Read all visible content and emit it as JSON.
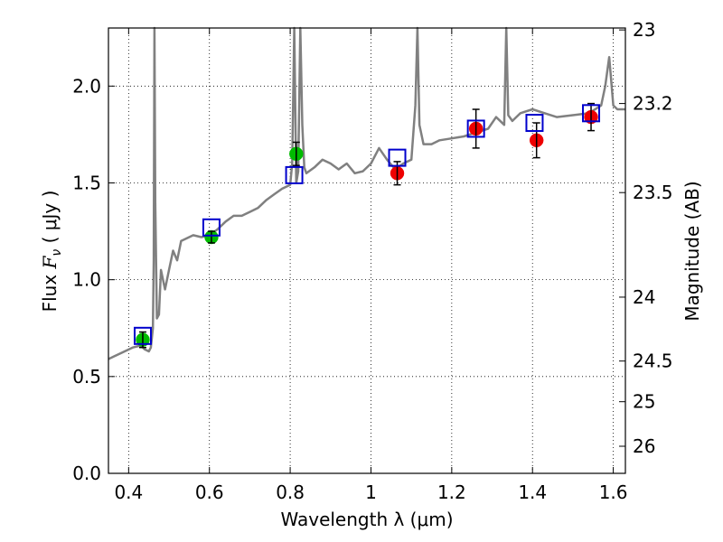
{
  "chart_data": {
    "type": "scatter",
    "xlabel": "Wavelength  λ (μm)",
    "ylabel_prefix": "Flux  ",
    "ylabel_symbol": "F",
    "ylabel_subscript": "ν",
    "ylabel_suffix": "  ( μJy )",
    "y2label": "Magnitude (AB)",
    "xlim": [
      0.35,
      1.63
    ],
    "ylim": [
      0.0,
      2.3
    ],
    "x_ticks": [
      0.4,
      0.6,
      0.8,
      1.0,
      1.2,
      1.4,
      1.6
    ],
    "x_tick_labels": [
      "0.4",
      "0.6",
      "0.8",
      "1",
      "1.2",
      "1.4",
      "1.6"
    ],
    "y_ticks": [
      0.0,
      0.5,
      1.0,
      1.5,
      2.0
    ],
    "y_tick_labels": [
      "0.0",
      "0.5",
      "1.0",
      "1.5",
      "2.0"
    ],
    "y2_ticks": [
      {
        "label": "23",
        "flux": 2.29
      },
      {
        "label": "23.2",
        "flux": 1.91
      },
      {
        "label": "23.5",
        "flux": 1.45
      },
      {
        "label": "24",
        "flux": 0.91
      },
      {
        "label": "24.5",
        "flux": 0.58
      },
      {
        "label": "25",
        "flux": 0.37
      },
      {
        "label": "26",
        "flux": 0.14
      }
    ],
    "grid": true,
    "colors": {
      "model": "#808080",
      "green": "#00bb00",
      "red": "#ee0000",
      "box": "#0000cc",
      "error": "#000000"
    },
    "model_spectrum": {
      "name": "model template",
      "x": [
        0.35,
        0.37,
        0.39,
        0.41,
        0.43,
        0.44,
        0.45,
        0.455,
        0.46,
        0.462,
        0.464,
        0.466,
        0.47,
        0.475,
        0.48,
        0.49,
        0.5,
        0.51,
        0.52,
        0.53,
        0.54,
        0.56,
        0.58,
        0.6,
        0.62,
        0.64,
        0.66,
        0.68,
        0.7,
        0.72,
        0.74,
        0.76,
        0.78,
        0.8,
        0.805,
        0.81,
        0.815,
        0.82,
        0.825,
        0.83,
        0.835,
        0.84,
        0.86,
        0.88,
        0.9,
        0.92,
        0.94,
        0.96,
        0.98,
        1.0,
        1.02,
        1.04,
        1.06,
        1.08,
        1.1,
        1.11,
        1.115,
        1.12,
        1.13,
        1.15,
        1.17,
        1.2,
        1.23,
        1.26,
        1.29,
        1.31,
        1.33,
        1.335,
        1.34,
        1.35,
        1.37,
        1.4,
        1.43,
        1.46,
        1.5,
        1.54,
        1.57,
        1.58,
        1.59,
        1.6,
        1.61,
        1.63
      ],
      "y": [
        0.59,
        0.61,
        0.63,
        0.65,
        0.66,
        0.64,
        0.63,
        0.65,
        0.75,
        1.1,
        2.3,
        1.4,
        0.8,
        0.82,
        1.05,
        0.95,
        1.05,
        1.15,
        1.1,
        1.2,
        1.21,
        1.23,
        1.22,
        1.23,
        1.26,
        1.3,
        1.33,
        1.33,
        1.35,
        1.37,
        1.41,
        1.44,
        1.47,
        1.49,
        1.6,
        2.3,
        1.5,
        1.56,
        2.3,
        1.8,
        1.58,
        1.55,
        1.58,
        1.62,
        1.6,
        1.57,
        1.6,
        1.55,
        1.56,
        1.6,
        1.68,
        1.62,
        1.57,
        1.6,
        1.62,
        1.9,
        2.3,
        1.8,
        1.7,
        1.7,
        1.72,
        1.73,
        1.74,
        1.76,
        1.78,
        1.84,
        1.8,
        2.3,
        1.85,
        1.82,
        1.86,
        1.88,
        1.86,
        1.84,
        1.85,
        1.86,
        1.9,
        2.0,
        2.15,
        1.9,
        1.88,
        1.88
      ]
    },
    "series": [
      {
        "name": "green points",
        "marker": "circle",
        "x": [
          0.435,
          0.605,
          0.815
        ],
        "y": [
          0.69,
          1.22,
          1.65
        ],
        "err": [
          0.04,
          0.03,
          0.06
        ]
      },
      {
        "name": "red points",
        "marker": "circle",
        "x": [
          1.065,
          1.26,
          1.41,
          1.545
        ],
        "y": [
          1.55,
          1.78,
          1.72,
          1.84
        ],
        "err": [
          0.06,
          0.1,
          0.09,
          0.07
        ]
      },
      {
        "name": "model photometry",
        "marker": "square-open",
        "x": [
          0.435,
          0.605,
          0.81,
          1.065,
          1.26,
          1.405,
          1.545
        ],
        "y": [
          0.71,
          1.27,
          1.54,
          1.63,
          1.78,
          1.81,
          1.86
        ]
      }
    ]
  }
}
